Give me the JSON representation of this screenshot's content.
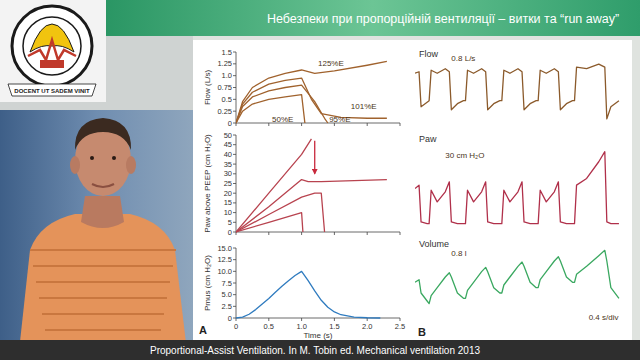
{
  "slide": {
    "title": "Небезпеки при пропорційній вентиляції – витки та “run away”",
    "logo_motto": "DOCENT UT SADEM VINIT",
    "caption": "Proportional-Assist Ventilation. In M. Tobin ed. Mechanical ventilation 2013",
    "panels": [
      "A",
      "B"
    ]
  },
  "chart_data": [
    {
      "type": "line",
      "y_label": "Flow (L/s)",
      "xlim": [
        0,
        2.5
      ],
      "xticks": [
        0,
        0.5,
        1,
        1.5,
        2,
        2.5
      ],
      "ylim": [
        0,
        1.5
      ],
      "yticks": [
        0,
        0.25,
        0.5,
        0.75,
        {
          "value": 1,
          "label": "1.0"
        },
        1.25,
        1.5
      ],
      "tick_labels": "y",
      "series": [
        {
          "color": "#a0622d",
          "x": [
            0,
            0.1,
            0.25,
            0.5,
            0.75,
            1.0,
            1.2,
            1.5,
            2.0,
            2.3
          ],
          "values": [
            0,
            0.45,
            0.75,
            0.95,
            1.05,
            1.12,
            1.05,
            1.1,
            1.22,
            1.3
          ]
        },
        {
          "color": "#a0622d",
          "x": [
            0,
            0.1,
            0.25,
            0.5,
            0.75,
            1.0,
            1.15,
            1.3,
            1.6,
            2.0,
            2.3
          ],
          "values": [
            0,
            0.4,
            0.65,
            0.82,
            0.9,
            0.95,
            0.5,
            0.2,
            0.12,
            0.1,
            0.1
          ]
        },
        {
          "color": "#a0622d",
          "x": [
            0,
            0.1,
            0.25,
            0.5,
            0.75,
            1.0,
            1.2,
            1.35,
            1.4
          ],
          "values": [
            0,
            0.35,
            0.55,
            0.68,
            0.75,
            0.8,
            0.45,
            0.1,
            0
          ]
        },
        {
          "color": "#a0622d",
          "x": [
            0,
            0.1,
            0.25,
            0.5,
            0.75,
            1.0,
            1.05
          ],
          "values": [
            0,
            0.25,
            0.4,
            0.5,
            0.55,
            0.6,
            0
          ]
        }
      ],
      "annotations": [
        {
          "text": "125%E",
          "x": 1.25,
          "y": 1.2
        },
        {
          "text": "101%E",
          "x": 1.75,
          "y": 0.3
        },
        {
          "text": "50%E",
          "x": 0.55,
          "y": 0.03
        },
        {
          "text": "95%E",
          "x": 1.42,
          "y": 0.03
        }
      ]
    },
    {
      "type": "line",
      "y_label": "Paw above PEEP (cm H₂O)",
      "xlim": [
        0,
        2.5
      ],
      "xticks": [
        0,
        0.5,
        1,
        1.5,
        2,
        2.5
      ],
      "ylim": [
        0,
        50
      ],
      "yticks": [
        0,
        5,
        10,
        15,
        20,
        25,
        30,
        35,
        40,
        45,
        50
      ],
      "tick_labels": "y",
      "series": [
        {
          "color": "#b8434f",
          "x": [
            0,
            0.5,
            1.0,
            1.15
          ],
          "values": [
            0,
            20,
            40,
            48
          ]
        },
        {
          "color": "#b8434f",
          "x": [
            0,
            0.5,
            1.0,
            1.1,
            1.3,
            2.3
          ],
          "values": [
            0,
            13,
            27,
            26,
            26,
            27
          ]
        },
        {
          "color": "#b8434f",
          "x": [
            0,
            0.5,
            1.0,
            1.2,
            1.3,
            1.35
          ],
          "values": [
            0,
            9,
            18,
            20,
            20,
            0
          ]
        },
        {
          "color": "#b8434f",
          "x": [
            0,
            0.5,
            1.0,
            1.02
          ],
          "values": [
            0,
            5,
            10,
            0
          ]
        }
      ],
      "annotations": [
        {
          "x": 1.2,
          "y": 47,
          "x_end": 1.2,
          "y_end": 30,
          "color": "#c8283c"
        }
      ]
    },
    {
      "type": "line",
      "y_label": "Pmus (cm H₂O)",
      "x_label": "Time (s)",
      "xlim": [
        0,
        2.5
      ],
      "xticks": [
        0,
        0.5,
        {
          "value": 1,
          "label": "1.0"
        },
        1.5,
        {
          "value": 2,
          "label": "2.0"
        },
        2.5
      ],
      "ylim": [
        0,
        15
      ],
      "yticks": [
        0,
        2.5,
        {
          "value": 5,
          "label": "5.0"
        },
        7.5,
        {
          "value": 10,
          "label": "10.0"
        },
        12.5,
        {
          "value": 15,
          "label": "15.0"
        }
      ],
      "series": [
        {
          "color": "#2f7bbf",
          "x": [
            0,
            0.1,
            0.2,
            0.3,
            0.4,
            0.5,
            0.6,
            0.7,
            0.8,
            0.9,
            1.0,
            1.1,
            1.2,
            1.3,
            1.4,
            1.5,
            1.6,
            1.8,
            2.0,
            2.2
          ],
          "values": [
            0,
            0.2,
            0.8,
            1.8,
            3.0,
            4.2,
            5.5,
            6.8,
            8.0,
            9.1,
            10,
            8.0,
            5.8,
            3.8,
            2.3,
            1.3,
            0.7,
            0.2,
            0.05,
            0
          ]
        }
      ]
    },
    {
      "type": "line",
      "title": "Flow",
      "xlim": [
        0,
        5.2
      ],
      "ylim": [
        -1,
        1.3
      ],
      "tick_labels": false,
      "series": [
        {
          "color": "#8b5a2b",
          "x": [
            0,
            0.1,
            0.15,
            0.3,
            0.35,
            0.4,
            0.55,
            0.75,
            0.85,
            0.9,
            1.05,
            1.2,
            1.25,
            1.3,
            1.45,
            1.65,
            1.75,
            1.8,
            1.95,
            2.1,
            2.15,
            2.2,
            2.35,
            2.55,
            2.65,
            2.7,
            2.85,
            3.0,
            3.05,
            3.1,
            3.25,
            3.45,
            3.55,
            3.6,
            3.75,
            3.9,
            3.95,
            4.0,
            4.25,
            4.55,
            4.7,
            4.75,
            4.85,
            5.05
          ],
          "values": [
            0.7,
            0.75,
            -0.4,
            -0.25,
            -0.2,
            0.8,
            0.7,
            0.85,
            0.75,
            -0.5,
            -0.3,
            -0.2,
            -0.2,
            0.8,
            0.7,
            0.85,
            0.75,
            -0.5,
            -0.3,
            -0.2,
            -0.2,
            0.8,
            0.7,
            0.85,
            0.75,
            -0.5,
            -0.3,
            -0.2,
            -0.2,
            0.8,
            0.7,
            0.85,
            0.75,
            -0.5,
            -0.3,
            -0.2,
            -0.2,
            0.9,
            0.85,
            1.0,
            0.9,
            -0.8,
            -0.4,
            -0.2
          ]
        }
      ],
      "annotations": [
        {
          "text": "0.8 L/s",
          "x": 0.9,
          "y": 1.1
        }
      ]
    },
    {
      "type": "line",
      "title": "Paw",
      "xlim": [
        0,
        5.2
      ],
      "ylim": [
        0,
        55
      ],
      "tick_labels": false,
      "series": [
        {
          "color": "#b0304a",
          "x": [
            0,
            0.1,
            0.15,
            0.3,
            0.35,
            0.4,
            0.55,
            0.75,
            0.85,
            0.9,
            1.05,
            1.2,
            1.25,
            1.3,
            1.45,
            1.65,
            1.75,
            1.8,
            1.95,
            2.1,
            2.15,
            2.2,
            2.35,
            2.55,
            2.65,
            2.7,
            2.85,
            3.0,
            3.05,
            3.1,
            3.25,
            3.45,
            3.55,
            3.6,
            3.75,
            3.9,
            3.95,
            4.0,
            4.25,
            4.55,
            4.7,
            4.75,
            4.85,
            5.05
          ],
          "values": [
            26,
            28,
            6,
            5,
            5,
            25,
            18,
            24,
            30,
            6,
            5,
            5,
            5,
            25,
            18,
            24,
            30,
            6,
            5,
            5,
            5,
            25,
            18,
            24,
            30,
            6,
            5,
            5,
            5,
            25,
            18,
            24,
            30,
            6,
            5,
            5,
            5,
            28,
            32,
            42,
            48,
            6,
            5,
            5
          ]
        }
      ],
      "annotations": [
        {
          "text": "30 cm H₂O",
          "x": 0.75,
          "y": 44
        }
      ]
    },
    {
      "type": "line",
      "title": "Volume",
      "xlim": [
        0,
        5.2
      ],
      "ylim": [
        -0.3,
        1.2
      ],
      "tick_labels": false,
      "series": [
        {
          "color": "#3aa860",
          "x": [
            0,
            0.1,
            0.15,
            0.3,
            0.35,
            0.4,
            0.55,
            0.75,
            0.85,
            0.9,
            1.05,
            1.2,
            1.25,
            1.3,
            1.45,
            1.65,
            1.75,
            1.8,
            1.95,
            2.1,
            2.15,
            2.2,
            2.35,
            2.55,
            2.65,
            2.7,
            2.85,
            3.0,
            3.05,
            3.1,
            3.25,
            3.45,
            3.55,
            3.6,
            3.75,
            3.9,
            3.95,
            4.0,
            4.25,
            4.55,
            4.7,
            4.75,
            4.85,
            5.05
          ],
          "values": [
            0.5,
            0.55,
            0.3,
            0.15,
            0.1,
            0.25,
            0.4,
            0.6,
            0.68,
            0.6,
            0.3,
            0.2,
            0.2,
            0.35,
            0.5,
            0.7,
            0.78,
            0.7,
            0.4,
            0.3,
            0.3,
            0.45,
            0.6,
            0.8,
            0.88,
            0.8,
            0.5,
            0.4,
            0.4,
            0.55,
            0.7,
            0.9,
            0.98,
            0.9,
            0.6,
            0.5,
            0.5,
            0.65,
            0.8,
            1.0,
            1.1,
            0.9,
            0.4,
            0.2
          ]
        }
      ],
      "annotations": [
        {
          "text": "0.8 l",
          "x": 0.9,
          "y": 1.0
        },
        {
          "text": "0.4 s/div",
          "x": 4.3,
          "y": -0.2
        }
      ]
    }
  ]
}
